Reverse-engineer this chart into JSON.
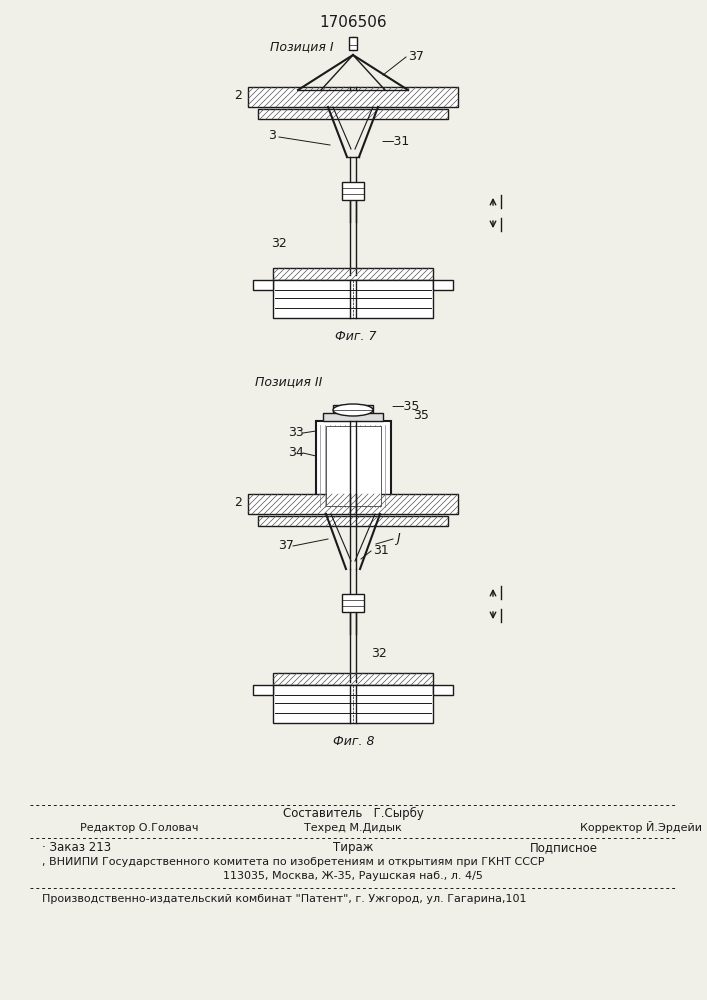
{
  "title": "1706506",
  "bg_color": "#f0efe8",
  "fig1_label": "Позиция I",
  "fig1_caption": "Фиг. 7",
  "fig2_label": "Позиция II",
  "fig2_caption": "Фиг. 8",
  "footer_line1": "Составитель   Г.Сырбу",
  "footer_line2_left": "Редактор О.Головач",
  "footer_line2_mid": "Техред М.Дидык",
  "footer_line2_right": "Корректор Й.Эрдейи",
  "footer_line3_left": "Заказ 213",
  "footer_line3_mid": "Тираж",
  "footer_line3_right": "Подписное",
  "footer_line4": "ВНИИПИ Государственного комитета по изобретениям и открытиям при ГКНТ СССР",
  "footer_line5": "113035, Москва, Ж-35, Раушская наб., л. 4/5",
  "footer_line6": "Производственно-издательский комбинат \"Патент\", г. Ужгород, ул. Гагарина,101",
  "text_color": "#1a1a1a",
  "line_color": "#1a1a1a"
}
